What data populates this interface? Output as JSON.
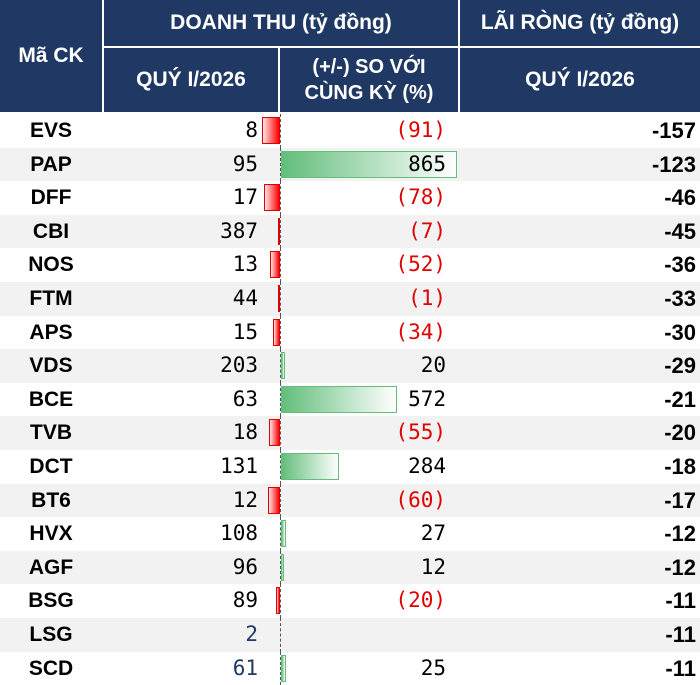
{
  "header": {
    "ticker": "Mã CK",
    "revenue_group": "DOANH THU (tỷ đồng)",
    "net_group": "LÃI RÒNG (tỷ đồng)",
    "revenue_q": "QUÝ I/2026",
    "yoy_line1": "(+/-) SO VỚI",
    "yoy_line2": "CÙNG KỲ (%)",
    "net_q": "QUÝ I/2026"
  },
  "colors": {
    "header_bg": "#1f3864",
    "negative": "#e00000",
    "positive_bar": "#63be7b",
    "blue_text": "#1f3864"
  },
  "rows": [
    {
      "ticker": "EVS",
      "revenue": "8",
      "yoy": "(91)",
      "yoy_value": -91,
      "net": "-157"
    },
    {
      "ticker": "PAP",
      "revenue": "95",
      "yoy": "865",
      "yoy_value": 865,
      "net": "-123"
    },
    {
      "ticker": "DFF",
      "revenue": "17",
      "yoy": "(78)",
      "yoy_value": -78,
      "net": "-46"
    },
    {
      "ticker": "CBI",
      "revenue": "387",
      "yoy": "(7)",
      "yoy_value": -7,
      "net": "-45"
    },
    {
      "ticker": "NOS",
      "revenue": "13",
      "yoy": "(52)",
      "yoy_value": -52,
      "net": "-36"
    },
    {
      "ticker": "FTM",
      "revenue": "44",
      "yoy": "(1)",
      "yoy_value": -1,
      "net": "-33"
    },
    {
      "ticker": "APS",
      "revenue": "15",
      "yoy": "(34)",
      "yoy_value": -34,
      "net": "-30"
    },
    {
      "ticker": "VDS",
      "revenue": "203",
      "yoy": "20",
      "yoy_value": 20,
      "net": "-29"
    },
    {
      "ticker": "BCE",
      "revenue": "63",
      "yoy": "572",
      "yoy_value": 572,
      "net": "-21"
    },
    {
      "ticker": "TVB",
      "revenue": "18",
      "yoy": "(55)",
      "yoy_value": -55,
      "net": "-20"
    },
    {
      "ticker": "DCT",
      "revenue": "131",
      "yoy": "284",
      "yoy_value": 284,
      "net": "-18"
    },
    {
      "ticker": "BT6",
      "revenue": "12",
      "yoy": "(60)",
      "yoy_value": -60,
      "net": "-17"
    },
    {
      "ticker": "HVX",
      "revenue": "108",
      "yoy": "27",
      "yoy_value": 27,
      "net": "-12"
    },
    {
      "ticker": "AGF",
      "revenue": "96",
      "yoy": "12",
      "yoy_value": 12,
      "net": "-12"
    },
    {
      "ticker": "BSG",
      "revenue": "89",
      "yoy": "(20)",
      "yoy_value": -20,
      "net": "-11"
    },
    {
      "ticker": "LSG",
      "revenue": "2",
      "yoy": "",
      "yoy_value": 0,
      "net": "-11",
      "revenue_blue": true
    },
    {
      "ticker": "SCD",
      "revenue": "61",
      "yoy": "25",
      "yoy_value": 25,
      "net": "-11",
      "revenue_blue": true
    }
  ]
}
